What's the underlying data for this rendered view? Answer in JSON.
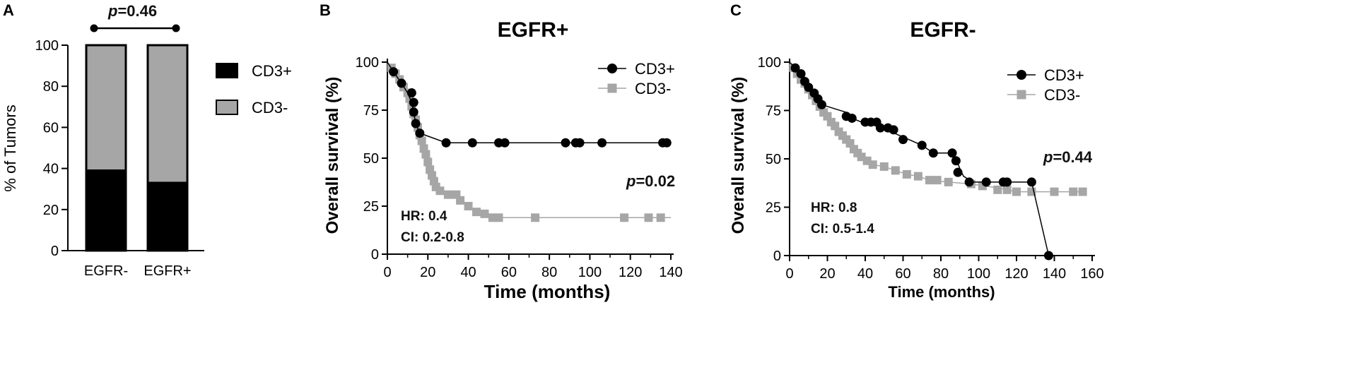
{
  "chart_data": [
    {
      "type": "bar",
      "panel": "A",
      "title": "",
      "ylabel": "% of Tumors",
      "ylim": [
        0,
        100
      ],
      "yticks": [
        0,
        20,
        40,
        60,
        80,
        100
      ],
      "categories": [
        "EGFR-",
        "EGFR+"
      ],
      "stacked": true,
      "series": [
        {
          "name": "CD3+",
          "color": "#000000",
          "values": [
            39,
            33
          ]
        },
        {
          "name": "CD3-",
          "color": "#a6a6a6",
          "values": [
            61,
            67
          ]
        }
      ],
      "annotation": {
        "p_label": "p",
        "p_value": "=0.46"
      }
    },
    {
      "type": "line",
      "panel": "B",
      "title": "EGFR+",
      "xlabel": "Time (months)",
      "ylabel": "Overall survival (%)",
      "xlim": [
        0,
        140
      ],
      "ylim": [
        0,
        100
      ],
      "xticks": [
        0,
        20,
        40,
        60,
        80,
        100,
        120,
        140
      ],
      "yticks": [
        0,
        25,
        50,
        75,
        100
      ],
      "series": [
        {
          "name": "CD3+",
          "color": "#000000",
          "marker": "circle",
          "steps": [
            [
              0,
              100
            ],
            [
              3,
              95
            ],
            [
              7,
              89
            ],
            [
              10,
              84
            ],
            [
              12,
              79
            ],
            [
              13,
              74
            ],
            [
              14,
              68
            ],
            [
              16,
              63
            ],
            [
              29,
              58
            ],
            [
              140,
              58
            ]
          ],
          "points": [
            [
              3,
              95
            ],
            [
              7,
              89
            ],
            [
              12,
              84
            ],
            [
              13,
              79
            ],
            [
              13,
              74
            ],
            [
              14,
              68
            ],
            [
              16,
              63
            ],
            [
              29,
              58
            ],
            [
              42,
              58
            ],
            [
              55,
              58
            ],
            [
              58,
              58
            ],
            [
              88,
              58
            ],
            [
              93,
              58
            ],
            [
              95,
              58
            ],
            [
              106,
              58
            ],
            [
              136,
              58
            ],
            [
              138,
              58
            ]
          ]
        },
        {
          "name": "CD3-",
          "color": "#a6a6a6",
          "marker": "square",
          "steps": [
            [
              0,
              100
            ],
            [
              2,
              97
            ],
            [
              4,
              94
            ],
            [
              6,
              91
            ],
            [
              8,
              87
            ],
            [
              10,
              84
            ],
            [
              11,
              81
            ],
            [
              12,
              77
            ],
            [
              13,
              73
            ],
            [
              14,
              70
            ],
            [
              15,
              66
            ],
            [
              16,
              62
            ],
            [
              17,
              59
            ],
            [
              18,
              55
            ],
            [
              19,
              52
            ],
            [
              20,
              48
            ],
            [
              21,
              44
            ],
            [
              22,
              41
            ],
            [
              23,
              38
            ],
            [
              24,
              35
            ],
            [
              26,
              33
            ],
            [
              29,
              31
            ],
            [
              34,
              31
            ],
            [
              36,
              28
            ],
            [
              40,
              25
            ],
            [
              44,
              22
            ],
            [
              48,
              21
            ],
            [
              52,
              19
            ],
            [
              140,
              19
            ]
          ],
          "points": [
            [
              2,
              97
            ],
            [
              4,
              94
            ],
            [
              6,
              91
            ],
            [
              8,
              87
            ],
            [
              10,
              84
            ],
            [
              11,
              81
            ],
            [
              12,
              77
            ],
            [
              13,
              73
            ],
            [
              14,
              70
            ],
            [
              15,
              66
            ],
            [
              16,
              62
            ],
            [
              17,
              59
            ],
            [
              18,
              55
            ],
            [
              19,
              52
            ],
            [
              20,
              48
            ],
            [
              21,
              44
            ],
            [
              22,
              41
            ],
            [
              23,
              38
            ],
            [
              24,
              35
            ],
            [
              26,
              33
            ],
            [
              30,
              31
            ],
            [
              34,
              31
            ],
            [
              36,
              28
            ],
            [
              40,
              25
            ],
            [
              44,
              22
            ],
            [
              48,
              21
            ],
            [
              52,
              19
            ],
            [
              55,
              19
            ],
            [
              73,
              19
            ],
            [
              117,
              19
            ],
            [
              129,
              19
            ],
            [
              135,
              19
            ]
          ]
        }
      ],
      "annotations": {
        "hr": "HR: 0.4",
        "ci": "CI: 0.2-0.8",
        "p_label": "p",
        "p_value": "=0.02"
      }
    },
    {
      "type": "line",
      "panel": "C",
      "title": "EGFR-",
      "xlabel": "Time (months)",
      "ylabel": "Overall survival (%)",
      "xlim": [
        0,
        160
      ],
      "ylim": [
        0,
        100
      ],
      "xticks": [
        0,
        20,
        40,
        60,
        80,
        100,
        120,
        140,
        160
      ],
      "yticks": [
        0,
        25,
        50,
        75,
        100
      ],
      "series": [
        {
          "name": "CD3+",
          "color": "#000000",
          "marker": "circle",
          "steps": [
            [
              0,
              100
            ],
            [
              3,
              97
            ],
            [
              6,
              94
            ],
            [
              8,
              90
            ],
            [
              10,
              87
            ],
            [
              13,
              84
            ],
            [
              15,
              81
            ],
            [
              17,
              78
            ],
            [
              30,
              74
            ],
            [
              33,
              71
            ],
            [
              38,
              69
            ],
            [
              46,
              67
            ],
            [
              50,
              65
            ],
            [
              56,
              63
            ],
            [
              63,
              60
            ],
            [
              70,
              57
            ],
            [
              76,
              53
            ],
            [
              86,
              53
            ],
            [
              88,
              50
            ],
            [
              90,
              45
            ],
            [
              92,
              41
            ],
            [
              97,
              38
            ],
            [
              128,
              38
            ],
            [
              137,
              0
            ]
          ],
          "points": [
            [
              3,
              97
            ],
            [
              6,
              94
            ],
            [
              8,
              90
            ],
            [
              10,
              87
            ],
            [
              13,
              84
            ],
            [
              15,
              81
            ],
            [
              17,
              78
            ],
            [
              30,
              72
            ],
            [
              33,
              71
            ],
            [
              40,
              69
            ],
            [
              43,
              69
            ],
            [
              46,
              69
            ],
            [
              48,
              66
            ],
            [
              52,
              66
            ],
            [
              55,
              65
            ],
            [
              60,
              60
            ],
            [
              70,
              57
            ],
            [
              76,
              53
            ],
            [
              86,
              53
            ],
            [
              88,
              49
            ],
            [
              89,
              43
            ],
            [
              95,
              38
            ],
            [
              104,
              38
            ],
            [
              113,
              38
            ],
            [
              115,
              38
            ],
            [
              128,
              38
            ],
            [
              137,
              0
            ]
          ]
        },
        {
          "name": "CD3-",
          "color": "#a6a6a6",
          "marker": "square",
          "steps": [
            [
              0,
              100
            ],
            [
              2,
              97
            ],
            [
              4,
              94
            ],
            [
              6,
              91
            ],
            [
              8,
              89
            ],
            [
              10,
              86
            ],
            [
              12,
              83
            ],
            [
              14,
              80
            ],
            [
              16,
              77
            ],
            [
              18,
              74
            ],
            [
              20,
              72
            ],
            [
              22,
              69
            ],
            [
              24,
              67
            ],
            [
              26,
              64
            ],
            [
              28,
              62
            ],
            [
              30,
              60
            ],
            [
              32,
              58
            ],
            [
              34,
              55
            ],
            [
              36,
              53
            ],
            [
              38,
              51
            ],
            [
              40,
              49
            ],
            [
              44,
              47
            ],
            [
              50,
              46
            ],
            [
              56,
              44
            ],
            [
              62,
              42
            ],
            [
              68,
              41
            ],
            [
              74,
              39
            ],
            [
              84,
              38
            ],
            [
              96,
              37
            ],
            [
              110,
              35
            ],
            [
              120,
              33
            ],
            [
              155,
              33
            ]
          ],
          "points": [
            [
              2,
              97
            ],
            [
              4,
              94
            ],
            [
              6,
              91
            ],
            [
              8,
              89
            ],
            [
              10,
              86
            ],
            [
              12,
              83
            ],
            [
              14,
              80
            ],
            [
              16,
              77
            ],
            [
              18,
              74
            ],
            [
              20,
              72
            ],
            [
              22,
              69
            ],
            [
              24,
              67
            ],
            [
              26,
              64
            ],
            [
              28,
              62
            ],
            [
              30,
              60
            ],
            [
              32,
              58
            ],
            [
              34,
              55
            ],
            [
              36,
              53
            ],
            [
              38,
              51
            ],
            [
              41,
              49
            ],
            [
              44,
              47
            ],
            [
              50,
              46
            ],
            [
              56,
              44
            ],
            [
              62,
              42
            ],
            [
              68,
              41
            ],
            [
              74,
              39
            ],
            [
              78,
              39
            ],
            [
              84,
              38
            ],
            [
              96,
              37
            ],
            [
              102,
              36
            ],
            [
              110,
              34
            ],
            [
              115,
              34
            ],
            [
              120,
              33
            ],
            [
              128,
              33
            ],
            [
              140,
              33
            ],
            [
              150,
              33
            ],
            [
              155,
              33
            ]
          ]
        }
      ],
      "annotations": {
        "hr": "HR: 0.8",
        "ci": "CI: 0.5-1.4",
        "p_label": "p",
        "p_value": "=0.44"
      }
    }
  ],
  "panels": {
    "a": {
      "letter": "A"
    },
    "b": {
      "letter": "B"
    },
    "c": {
      "letter": "C"
    }
  }
}
